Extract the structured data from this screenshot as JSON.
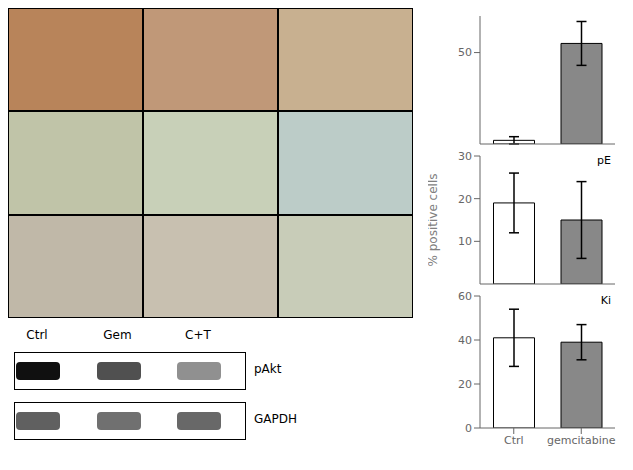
{
  "chart_data": [
    {
      "type": "bar",
      "categories": [
        "Ctrl",
        "gemcitabine"
      ],
      "values": [
        2,
        55
      ],
      "errors": [
        2,
        12
      ],
      "colors": [
        "white",
        "#888888"
      ],
      "ylim": [
        0,
        70
      ],
      "yticks": [
        0,
        50
      ],
      "tick_labels": "y"
    },
    {
      "type": "bar",
      "categories": [
        "Ctrl",
        "gemcitabine"
      ],
      "values": [
        19,
        15
      ],
      "errors": [
        7,
        9
      ],
      "colors": [
        "white",
        "#888888"
      ],
      "ylim": [
        0,
        30
      ],
      "yticks": [
        0,
        10,
        20,
        30
      ],
      "tick_labels": "y",
      "annotations": [
        "pE"
      ],
      "ylabel": "% positive cells"
    },
    {
      "type": "bar",
      "categories": [
        "Ctrl",
        "gemcitabine"
      ],
      "values": [
        41,
        39
      ],
      "errors": [
        13,
        8
      ],
      "colors": [
        "white",
        "#888888"
      ],
      "ylim": [
        0,
        60
      ],
      "yticks": [
        0,
        20,
        40,
        60
      ],
      "annotations": [
        "Ki"
      ]
    },
    {
      "type": "blot",
      "categories": [
        "Ctrl",
        "Gem",
        "C+T"
      ],
      "annotations": [
        "pAkt",
        "GAPDH"
      ]
    }
  ]
}
